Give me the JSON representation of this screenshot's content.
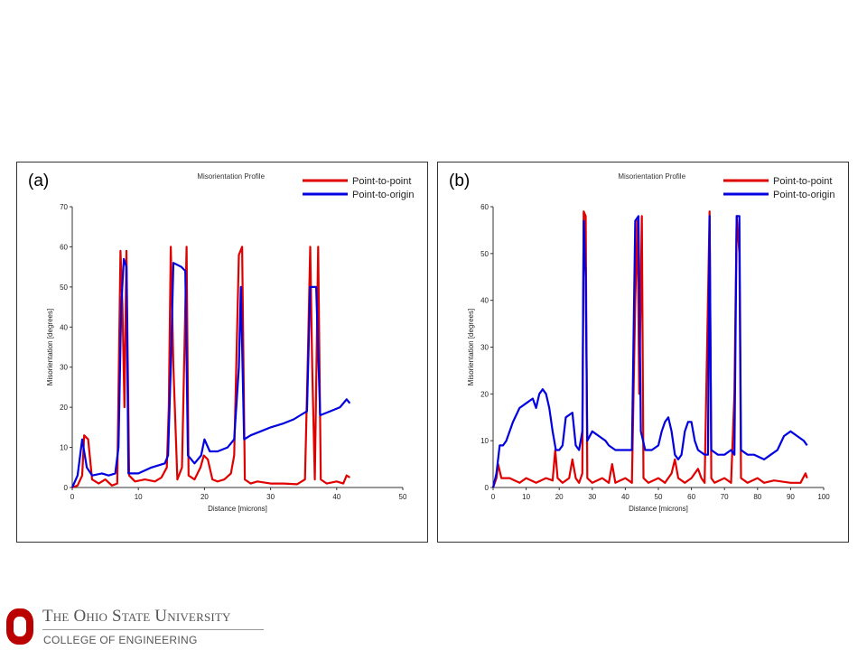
{
  "chart_data": [
    {
      "panel_label": "(a)",
      "type": "line",
      "title": "Misorientation Profile",
      "xlabel": "Distance [microns]",
      "ylabel": "Misorientation [degrees]",
      "xlim": [
        0,
        50
      ],
      "ylim": [
        0,
        70
      ],
      "xticks": [
        0,
        10,
        20,
        30,
        40,
        50
      ],
      "yticks": [
        0,
        10,
        20,
        30,
        40,
        50,
        60,
        70
      ],
      "legend_position": "top-right",
      "series": [
        {
          "name": "Point-to-point",
          "color": "#e00000",
          "points": [
            [
              0,
              0
            ],
            [
              0.8,
              0.5
            ],
            [
              1.5,
              3
            ],
            [
              1.8,
              13
            ],
            [
              2.4,
              12
            ],
            [
              3,
              2
            ],
            [
              4,
              1
            ],
            [
              5,
              2
            ],
            [
              6,
              0.5
            ],
            [
              6.8,
              1
            ],
            [
              7.3,
              59
            ],
            [
              7.6,
              45
            ],
            [
              7.9,
              20
            ],
            [
              8.2,
              59
            ],
            [
              8.6,
              3
            ],
            [
              9.5,
              1.5
            ],
            [
              11,
              2
            ],
            [
              12.5,
              1.5
            ],
            [
              13.5,
              2.5
            ],
            [
              14.3,
              5
            ],
            [
              14.6,
              20
            ],
            [
              14.9,
              60
            ],
            [
              15.3,
              30
            ],
            [
              15.9,
              2
            ],
            [
              16.6,
              5
            ],
            [
              17.3,
              60
            ],
            [
              17.6,
              3
            ],
            [
              18.5,
              2
            ],
            [
              19.4,
              5
            ],
            [
              19.9,
              8
            ],
            [
              20.5,
              7
            ],
            [
              21.2,
              2
            ],
            [
              22,
              1.5
            ],
            [
              23,
              2
            ],
            [
              24,
              3.5
            ],
            [
              24.5,
              8
            ],
            [
              25.2,
              58
            ],
            [
              25.7,
              60
            ],
            [
              26.1,
              2
            ],
            [
              27,
              1
            ],
            [
              28,
              1.5
            ],
            [
              30,
              1
            ],
            [
              32,
              1
            ],
            [
              34,
              0.8
            ],
            [
              35.2,
              2
            ],
            [
              35.6,
              30
            ],
            [
              36,
              60
            ],
            [
              36.3,
              30
            ],
            [
              36.7,
              2
            ],
            [
              37.2,
              60
            ],
            [
              37.6,
              2
            ],
            [
              38.5,
              1
            ],
            [
              40,
              1.5
            ],
            [
              41,
              1
            ],
            [
              41.5,
              3
            ],
            [
              42,
              2.5
            ]
          ]
        },
        {
          "name": "Point-to-origin",
          "color": "#0000e0",
          "points": [
            [
              0,
              0
            ],
            [
              0.8,
              3
            ],
            [
              1.5,
              12
            ],
            [
              2.2,
              5
            ],
            [
              3,
              3
            ],
            [
              4.5,
              3.5
            ],
            [
              5.5,
              3
            ],
            [
              6.5,
              3.5
            ],
            [
              7,
              10
            ],
            [
              7.4,
              45
            ],
            [
              7.8,
              57
            ],
            [
              8.2,
              55
            ],
            [
              8.5,
              3.5
            ],
            [
              10,
              3.5
            ],
            [
              12,
              5
            ],
            [
              14,
              6
            ],
            [
              14.5,
              8
            ],
            [
              14.9,
              30
            ],
            [
              15.3,
              56
            ],
            [
              16.5,
              55
            ],
            [
              17.1,
              54
            ],
            [
              17.5,
              8
            ],
            [
              18.5,
              6
            ],
            [
              19.5,
              8
            ],
            [
              20,
              12
            ],
            [
              20.8,
              9
            ],
            [
              22,
              9
            ],
            [
              23.5,
              10
            ],
            [
              24.5,
              12
            ],
            [
              25.2,
              30
            ],
            [
              25.5,
              50
            ],
            [
              26,
              12
            ],
            [
              27,
              13
            ],
            [
              28.5,
              14
            ],
            [
              30,
              15
            ],
            [
              32,
              16
            ],
            [
              33.5,
              17
            ],
            [
              34.5,
              18
            ],
            [
              35.5,
              19
            ],
            [
              36,
              50
            ],
            [
              36.9,
              50
            ],
            [
              37.5,
              18
            ],
            [
              39,
              19
            ],
            [
              40.5,
              20
            ],
            [
              41.5,
              22
            ],
            [
              42,
              21
            ]
          ]
        }
      ]
    },
    {
      "panel_label": "(b)",
      "type": "line",
      "title": "Misorientation Profile",
      "xlabel": "Distance [microns]",
      "ylabel": "Misorientation [degrees]",
      "xlim": [
        0,
        100
      ],
      "ylim": [
        0,
        60
      ],
      "xticks": [
        0,
        10,
        20,
        30,
        40,
        50,
        60,
        70,
        80,
        90,
        100
      ],
      "yticks": [
        0,
        10,
        20,
        30,
        40,
        50,
        60
      ],
      "legend_position": "top-right",
      "series": [
        {
          "name": "Point-to-point",
          "color": "#e00000",
          "points": [
            [
              0,
              0
            ],
            [
              1,
              2
            ],
            [
              1.5,
              5
            ],
            [
              2.5,
              2
            ],
            [
              5,
              2
            ],
            [
              8,
              1
            ],
            [
              10,
              2
            ],
            [
              13,
              1
            ],
            [
              16,
              2
            ],
            [
              18,
              1.5
            ],
            [
              18.8,
              8
            ],
            [
              19.5,
              2
            ],
            [
              21,
              1
            ],
            [
              23,
              2
            ],
            [
              24,
              6
            ],
            [
              25,
              2
            ],
            [
              26,
              1
            ],
            [
              27,
              3
            ],
            [
              27.4,
              59
            ],
            [
              28,
              58
            ],
            [
              28.5,
              2
            ],
            [
              30,
              1
            ],
            [
              33,
              2
            ],
            [
              35,
              1
            ],
            [
              36,
              5
            ],
            [
              37,
              1
            ],
            [
              40,
              2
            ],
            [
              42,
              1
            ],
            [
              43,
              40
            ],
            [
              43.7,
              57
            ],
            [
              44.2,
              20
            ],
            [
              45,
              58
            ],
            [
              45.5,
              2
            ],
            [
              47,
              1
            ],
            [
              50,
              2
            ],
            [
              52,
              1
            ],
            [
              54,
              3
            ],
            [
              55,
              6
            ],
            [
              56,
              2
            ],
            [
              58,
              1
            ],
            [
              60,
              2
            ],
            [
              62,
              4
            ],
            [
              63,
              2
            ],
            [
              64,
              1
            ],
            [
              65,
              40
            ],
            [
              65.5,
              59
            ],
            [
              66,
              2
            ],
            [
              67,
              1
            ],
            [
              70,
              2
            ],
            [
              72,
              1
            ],
            [
              73,
              20
            ],
            [
              73.7,
              58
            ],
            [
              74.5,
              50
            ],
            [
              75,
              2
            ],
            [
              77,
              1
            ],
            [
              80,
              2
            ],
            [
              82,
              1
            ],
            [
              85,
              1.5
            ],
            [
              90,
              1
            ],
            [
              93,
              1
            ],
            [
              94.5,
              3
            ],
            [
              95,
              2
            ]
          ]
        },
        {
          "name": "Point-to-origin",
          "color": "#0000e0",
          "points": [
            [
              0,
              0
            ],
            [
              1,
              3
            ],
            [
              2,
              9
            ],
            [
              3,
              9
            ],
            [
              4,
              10
            ],
            [
              6,
              14
            ],
            [
              8,
              17
            ],
            [
              10,
              18
            ],
            [
              12,
              19
            ],
            [
              13,
              17
            ],
            [
              14,
              20
            ],
            [
              15,
              21
            ],
            [
              16,
              20
            ],
            [
              17,
              17
            ],
            [
              18,
              12
            ],
            [
              19,
              8
            ],
            [
              20,
              8
            ],
            [
              21,
              9
            ],
            [
              22,
              15
            ],
            [
              24,
              16
            ],
            [
              25,
              9
            ],
            [
              26,
              8
            ],
            [
              27,
              12
            ],
            [
              27.4,
              57
            ],
            [
              28,
              45
            ],
            [
              28.5,
              10
            ],
            [
              30,
              12
            ],
            [
              32,
              11
            ],
            [
              34,
              10
            ],
            [
              35,
              9
            ],
            [
              37,
              8
            ],
            [
              40,
              8
            ],
            [
              42,
              8
            ],
            [
              43,
              57
            ],
            [
              44,
              58
            ],
            [
              44.7,
              12
            ],
            [
              46,
              8
            ],
            [
              48,
              8
            ],
            [
              50,
              9
            ],
            [
              51,
              12
            ],
            [
              52,
              14
            ],
            [
              53,
              15
            ],
            [
              54,
              12
            ],
            [
              55,
              7
            ],
            [
              56,
              6
            ],
            [
              57,
              7
            ],
            [
              58,
              12
            ],
            [
              59,
              14
            ],
            [
              60,
              14
            ],
            [
              61,
              10
            ],
            [
              62,
              8
            ],
            [
              64,
              7
            ],
            [
              65,
              7
            ],
            [
              65.5,
              58
            ],
            [
              66,
              8
            ],
            [
              68,
              7
            ],
            [
              70,
              7
            ],
            [
              72,
              8
            ],
            [
              73,
              7
            ],
            [
              73.7,
              58
            ],
            [
              74.5,
              58
            ],
            [
              75,
              8
            ],
            [
              77,
              7
            ],
            [
              79,
              7
            ],
            [
              82,
              6
            ],
            [
              84,
              7
            ],
            [
              86,
              8
            ],
            [
              88,
              11
            ],
            [
              90,
              12
            ],
            [
              92,
              11
            ],
            [
              94,
              10
            ],
            [
              95,
              9
            ]
          ]
        }
      ]
    }
  ],
  "footer": {
    "university": "The Ohio State University",
    "college": "COLLEGE OF ENGINEERING",
    "logo_color": "#bb0000"
  }
}
